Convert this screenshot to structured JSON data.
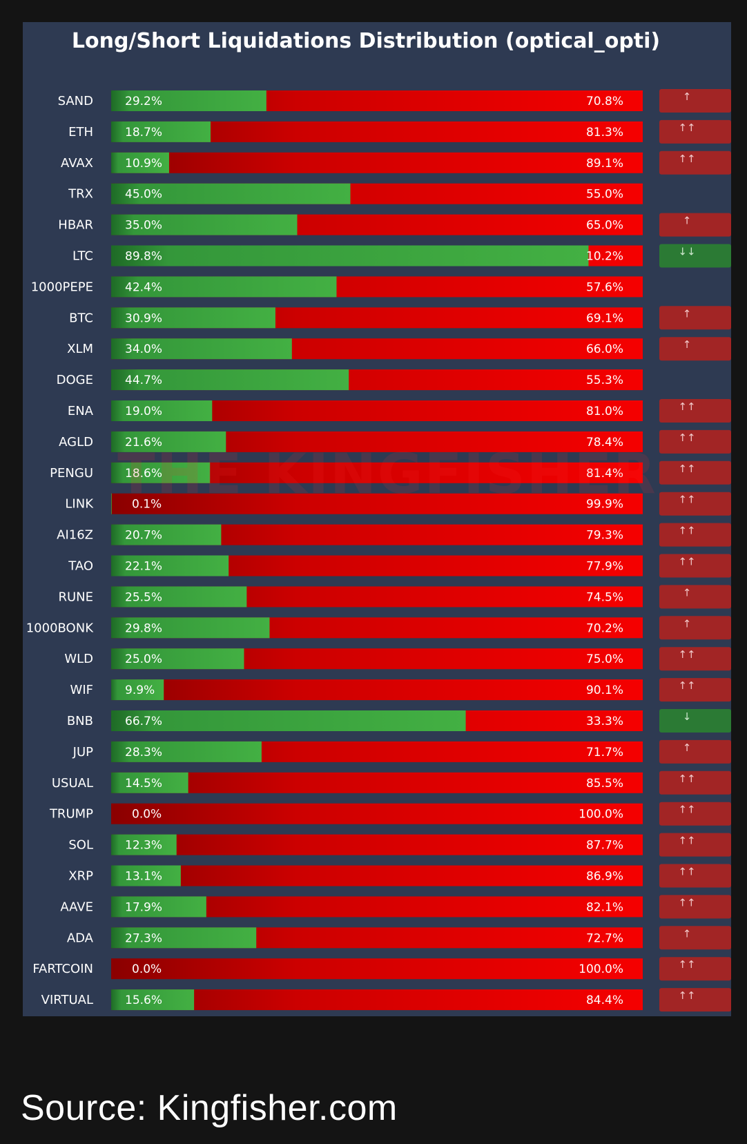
{
  "caption": "Source: Kingfisher.com",
  "watermark": "THE KINGFISHER",
  "colors": {
    "panel": "#2e3a52",
    "long_bar": "#3aa53a",
    "short_bar": "#ee0000",
    "up_badge": "#a22525",
    "down_badge": "#2b7a34",
    "label": "#ffffff"
  },
  "chart_data": {
    "type": "bar",
    "orientation": "horizontal",
    "stacked": true,
    "percent": true,
    "title": "Long/Short Liquidations Distribution (optical_opti)",
    "xlim": [
      0,
      100
    ],
    "grid": false,
    "categories": [
      "SAND",
      "ETH",
      "AVAX",
      "TRX",
      "HBAR",
      "LTC",
      "1000PEPE",
      "BTC",
      "XLM",
      "DOGE",
      "ENA",
      "AGLD",
      "PENGU",
      "LINK",
      "AI16Z",
      "TAO",
      "RUNE",
      "1000BONK",
      "WLD",
      "WIF",
      "BNB",
      "JUP",
      "USUAL",
      "TRUMP",
      "SOL",
      "XRP",
      "AAVE",
      "ADA",
      "FARTCOIN",
      "VIRTUAL"
    ],
    "series": [
      {
        "values": [
          29.2,
          18.7,
          10.9,
          45.0,
          35.0,
          89.8,
          42.4,
          30.9,
          34.0,
          44.7,
          19.0,
          21.6,
          18.6,
          0.1,
          20.7,
          22.1,
          25.5,
          29.8,
          25.0,
          9.9,
          66.7,
          28.3,
          14.5,
          0.0,
          12.3,
          13.1,
          17.9,
          27.3,
          0.0,
          15.6
        ],
        "labels": [
          "29.2%",
          "18.7%",
          "10.9%",
          "45.0%",
          "35.0%",
          "89.8%",
          "42.4%",
          "30.9%",
          "34.0%",
          "44.7%",
          "19.0%",
          "21.6%",
          "18.6%",
          "0.1%",
          "20.7%",
          "22.1%",
          "25.5%",
          "29.8%",
          "25.0%",
          "9.9%",
          "66.7%",
          "28.3%",
          "14.5%",
          "0.0%",
          "12.3%",
          "13.1%",
          "17.9%",
          "27.3%",
          "0.0%",
          "15.6%"
        ]
      },
      {
        "values": [
          70.8,
          81.3,
          89.1,
          55.0,
          65.0,
          10.2,
          57.6,
          69.1,
          66.0,
          55.3,
          81.0,
          78.4,
          81.4,
          99.9,
          79.3,
          77.9,
          74.5,
          70.2,
          75.0,
          90.1,
          33.3,
          71.7,
          85.5,
          100.0,
          87.7,
          86.9,
          82.1,
          72.7,
          100.0,
          84.4
        ],
        "labels": [
          "70.8%",
          "81.3%",
          "89.1%",
          "55.0%",
          "65.0%",
          "10.2%",
          "57.6%",
          "69.1%",
          "66.0%",
          "55.3%",
          "81.0%",
          "78.4%",
          "81.4%",
          "99.9%",
          "79.3%",
          "77.9%",
          "74.5%",
          "70.2%",
          "75.0%",
          "90.1%",
          "33.3%",
          "71.7%",
          "85.5%",
          "100.0%",
          "87.7%",
          "86.9%",
          "82.1%",
          "72.7%",
          "100.0%",
          "84.4%"
        ]
      }
    ],
    "indicators": [
      "↑",
      "↑↑",
      "↑↑",
      "",
      "↑",
      "↓↓",
      "",
      "↑",
      "↑",
      "",
      "↑↑",
      "↑↑",
      "↑↑",
      "↑↑",
      "↑↑",
      "↑↑",
      "↑",
      "↑",
      "↑↑",
      "↑↑",
      "↓",
      "↑",
      "↑↑",
      "↑↑",
      "↑↑",
      "↑↑",
      "↑↑",
      "↑",
      "↑↑",
      "↑↑"
    ]
  }
}
